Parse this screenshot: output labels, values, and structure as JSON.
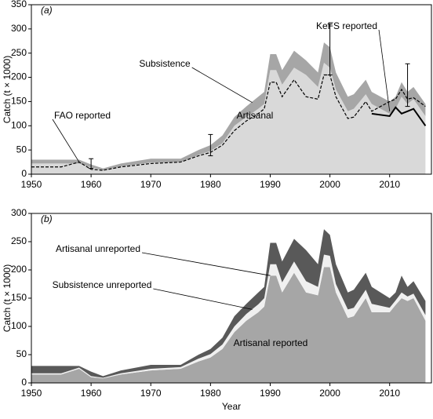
{
  "chart_data": [
    {
      "type": "area",
      "panel_label": "(a)",
      "ylabel": "Catch (t × 1000)",
      "x": [
        1950,
        1955,
        1958,
        1960,
        1962,
        1965,
        1970,
        1975,
        1978,
        1980,
        1982,
        1984,
        1986,
        1988,
        1989,
        1990,
        1991,
        1992,
        1994,
        1996,
        1998,
        1999,
        2000,
        2001,
        2003,
        2004,
        2006,
        2007,
        2010,
        2011,
        2012,
        2013,
        2014,
        2016
      ],
      "series": [
        {
          "name": "Artisanal",
          "kind": "stack",
          "color": "#d9d9d9",
          "values": [
            22,
            22,
            22,
            14,
            8,
            16,
            24,
            25,
            40,
            48,
            64,
            100,
            118,
            135,
            145,
            215,
            215,
            185,
            220,
            205,
            180,
            230,
            220,
            175,
            130,
            135,
            165,
            145,
            125,
            135,
            160,
            145,
            155,
            120
          ]
        },
        {
          "name": "Subsistence",
          "kind": "stack",
          "color": "#a6a6a6",
          "values": [
            8,
            8,
            8,
            6,
            4,
            6,
            8,
            7,
            10,
            12,
            16,
            18,
            22,
            25,
            25,
            33,
            33,
            30,
            35,
            30,
            30,
            42,
            42,
            35,
            30,
            30,
            30,
            25,
            25,
            25,
            30,
            25,
            25,
            25
          ]
        },
        {
          "name": "FAO reported",
          "kind": "line",
          "dash": true,
          "color": "#000000",
          "values": [
            15,
            15,
            25,
            10,
            8,
            15,
            22,
            25,
            38,
            45,
            60,
            90,
            110,
            125,
            135,
            190,
            190,
            160,
            195,
            160,
            155,
            205,
            205,
            160,
            115,
            118,
            150,
            130,
            150,
            155,
            175,
            155,
            158,
            140
          ]
        },
        {
          "name": "KeFS reported",
          "kind": "line",
          "dash": false,
          "color": "#000000",
          "values": [
            null,
            null,
            null,
            null,
            null,
            null,
            null,
            null,
            null,
            null,
            null,
            null,
            null,
            null,
            null,
            null,
            null,
            null,
            null,
            null,
            null,
            null,
            null,
            null,
            null,
            null,
            null,
            125,
            120,
            138,
            125,
            130,
            135,
            100
          ]
        }
      ],
      "error_bars": [
        {
          "x": 1960,
          "low": 12,
          "high": 32
        },
        {
          "x": 1980,
          "low": 38,
          "high": 82
        },
        {
          "x": 2000,
          "low": 205,
          "high": 310
        },
        {
          "x": 2013,
          "low": 140,
          "high": 228
        }
      ],
      "xlim": [
        1950,
        2017
      ],
      "xticks": [
        1950,
        1960,
        1970,
        1980,
        1990,
        2000,
        2010
      ],
      "ylim": [
        0,
        350
      ],
      "yticks": [
        0,
        50,
        100,
        150,
        200,
        250,
        300,
        350
      ]
    },
    {
      "type": "area",
      "panel_label": "(b)",
      "ylabel": "Catch (t × 1000)",
      "xlabel": "Year",
      "x": [
        1950,
        1955,
        1958,
        1960,
        1962,
        1965,
        1970,
        1975,
        1978,
        1980,
        1982,
        1984,
        1986,
        1988,
        1989,
        1990,
        1991,
        1992,
        1994,
        1996,
        1998,
        1999,
        2000,
        2001,
        2003,
        2004,
        2006,
        2007,
        2010,
        2011,
        2012,
        2013,
        2014,
        2016
      ],
      "series": [
        {
          "name": "Artisanal reported",
          "kind": "stack",
          "color": "#a6a6a6",
          "values": [
            15,
            15,
            25,
            10,
            8,
            15,
            22,
            25,
            38,
            45,
            60,
            90,
            110,
            125,
            135,
            190,
            190,
            160,
            195,
            160,
            155,
            205,
            205,
            160,
            115,
            118,
            150,
            125,
            125,
            138,
            150,
            145,
            150,
            110
          ]
        },
        {
          "name": "Subsistence unreported",
          "kind": "stack",
          "color": "#f0f0f0",
          "values": [
            2,
            2,
            2,
            2,
            1,
            2,
            3,
            3,
            5,
            6,
            8,
            10,
            12,
            14,
            15,
            20,
            20,
            18,
            20,
            20,
            15,
            22,
            20,
            15,
            15,
            15,
            15,
            15,
            8,
            8,
            10,
            8,
            8,
            10
          ]
        },
        {
          "name": "Artisanal unreported",
          "kind": "stack",
          "color": "#595959",
          "values": [
            13,
            13,
            3,
            8,
            3,
            5,
            7,
            4,
            7,
            9,
            12,
            18,
            18,
            21,
            20,
            38,
            38,
            37,
            40,
            55,
            40,
            45,
            37,
            35,
            30,
            32,
            30,
            30,
            17,
            14,
            30,
            17,
            22,
            25
          ]
        }
      ],
      "xlim": [
        1950,
        2017
      ],
      "xticks": [
        1950,
        1960,
        1970,
        1980,
        1990,
        2000,
        2010
      ],
      "ylim": [
        0,
        300
      ],
      "yticks": [
        0,
        50,
        100,
        150,
        200,
        250,
        300
      ]
    }
  ]
}
